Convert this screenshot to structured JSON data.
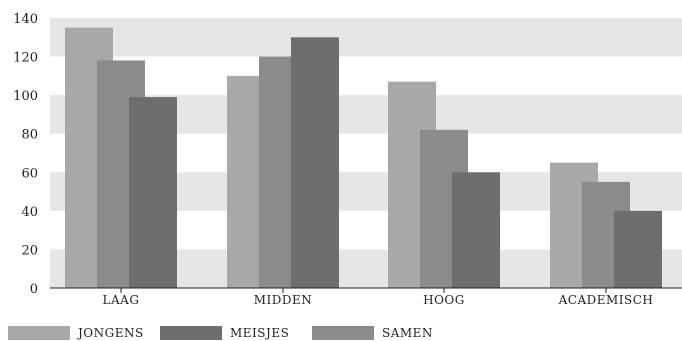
{
  "chart_data": {
    "type": "bar",
    "categories": [
      "LAAG",
      "MIDDEN",
      "HOOG",
      "ACADEMISCH"
    ],
    "series": [
      {
        "name": "JONGENS",
        "values": [
          135,
          110,
          107,
          65
        ],
        "color": "#a8a8aa"
      },
      {
        "name": "SAMEN",
        "values": [
          118,
          120,
          82,
          55
        ],
        "color": "#8b8b8d"
      },
      {
        "name": "MEISJES",
        "values": [
          99,
          130,
          60,
          40
        ],
        "color": "#6e6e70"
      }
    ],
    "legend": [
      {
        "name": "JONGENS",
        "color": "#a8a8aa"
      },
      {
        "name": "MEISJES",
        "color": "#6e6e70"
      },
      {
        "name": "SAMEN",
        "color": "#8b8b8d"
      }
    ],
    "ylim": [
      0,
      140
    ],
    "yticks": [
      "0",
      "20",
      "40",
      "60",
      "80",
      "100",
      "120",
      "140"
    ],
    "grid": "alternating bands",
    "band_color": "#e6e6e8",
    "legend_position": "bottom"
  }
}
